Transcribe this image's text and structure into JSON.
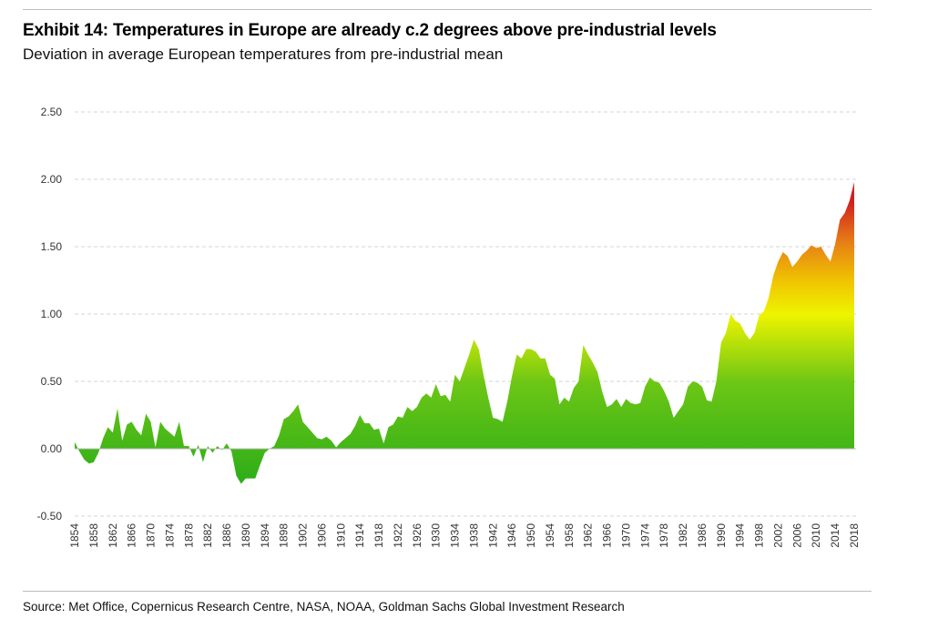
{
  "header": {
    "title": "Exhibit 14: Temperatures in Europe are already c.2 degrees above pre-industrial levels",
    "subtitle": "Deviation in average European temperatures from pre-industrial mean"
  },
  "footer": {
    "source": "Source: Met Office, Copernicus Research Centre, NASA, NOAA, Goldman Sachs Global Investment Research"
  },
  "chart_data": {
    "type": "area",
    "title": "",
    "xlabel": "",
    "ylabel": "",
    "ylim": [
      -0.5,
      2.5
    ],
    "y_ticks": [
      "2.50",
      "2.00",
      "1.50",
      "1.00",
      "0.50",
      "0.00",
      "-0.50"
    ],
    "y_tick_values": [
      2.5,
      2.0,
      1.5,
      1.0,
      0.5,
      0.0,
      -0.5
    ],
    "x_ticks": [
      "1854",
      "1858",
      "1862",
      "1866",
      "1870",
      "1874",
      "1878",
      "1882",
      "1886",
      "1890",
      "1894",
      "1898",
      "1902",
      "1906",
      "1910",
      "1914",
      "1918",
      "1922",
      "1926",
      "1930",
      "1934",
      "1938",
      "1942",
      "1946",
      "1950",
      "1954",
      "1958",
      "1962",
      "1966",
      "1970",
      "1974",
      "1978",
      "1982",
      "1986",
      "1990",
      "1994",
      "1998",
      "2002",
      "2006",
      "2010",
      "2014",
      "2018"
    ],
    "grid": "horizontal dashed",
    "color_gradient": [
      "#18a51a",
      "#6cc615",
      "#eef400",
      "#f0c600",
      "#e67e16",
      "#d21f1f"
    ],
    "series": [
      {
        "x": [
          1854,
          1855,
          1856,
          1857,
          1858,
          1859,
          1860,
          1861,
          1862,
          1863,
          1864,
          1865,
          1866,
          1867,
          1868,
          1869,
          1870,
          1871,
          1872,
          1873,
          1874,
          1875,
          1876,
          1877,
          1878,
          1879,
          1880,
          1881,
          1882,
          1883,
          1884,
          1885,
          1886,
          1887,
          1888,
          1889,
          1890,
          1891,
          1892,
          1893,
          1894,
          1895,
          1896,
          1897,
          1898,
          1899,
          1900,
          1901,
          1902,
          1903,
          1904,
          1905,
          1906,
          1907,
          1908,
          1909,
          1910,
          1911,
          1912,
          1913,
          1914,
          1915,
          1916,
          1917,
          1918,
          1919,
          1920,
          1921,
          1922,
          1923,
          1924,
          1925,
          1926,
          1927,
          1928,
          1929,
          1930,
          1931,
          1932,
          1933,
          1934,
          1935,
          1936,
          1937,
          1938,
          1939,
          1940,
          1941,
          1942,
          1943,
          1944,
          1945,
          1946,
          1947,
          1948,
          1949,
          1950,
          1951,
          1952,
          1953,
          1954,
          1955,
          1956,
          1957,
          1958,
          1959,
          1960,
          1961,
          1962,
          1963,
          1964,
          1965,
          1966,
          1967,
          1968,
          1969,
          1970,
          1971,
          1972,
          1973,
          1974,
          1975,
          1976,
          1977,
          1978,
          1979,
          1980,
          1981,
          1982,
          1983,
          1984,
          1985,
          1986,
          1987,
          1988,
          1989,
          1990,
          1991,
          1992,
          1993,
          1994,
          1995,
          1996,
          1997,
          1998,
          1999,
          2000,
          2001,
          2002,
          2003,
          2004,
          2005,
          2006,
          2007,
          2008,
          2009,
          2010,
          2011,
          2012,
          2013,
          2014,
          2015,
          2016,
          2017,
          2018
        ],
        "values": [
          0.05,
          -0.02,
          -0.08,
          -0.11,
          -0.1,
          -0.03,
          0.08,
          0.16,
          0.12,
          0.3,
          0.06,
          0.18,
          0.2,
          0.14,
          0.1,
          0.26,
          0.2,
          0.01,
          0.2,
          0.15,
          0.12,
          0.09,
          0.2,
          0.02,
          0.02,
          -0.06,
          0.03,
          -0.1,
          0.02,
          -0.03,
          0.02,
          -0.01,
          0.04,
          -0.02,
          -0.2,
          -0.26,
          -0.22,
          -0.22,
          -0.22,
          -0.12,
          -0.03,
          0.0,
          0.02,
          0.1,
          0.22,
          0.24,
          0.28,
          0.33,
          0.2,
          0.16,
          0.12,
          0.08,
          0.07,
          0.09,
          0.06,
          0.01,
          0.05,
          0.08,
          0.11,
          0.17,
          0.25,
          0.19,
          0.19,
          0.14,
          0.15,
          0.04,
          0.16,
          0.18,
          0.24,
          0.23,
          0.31,
          0.28,
          0.31,
          0.38,
          0.41,
          0.38,
          0.48,
          0.39,
          0.4,
          0.35,
          0.55,
          0.5,
          0.6,
          0.7,
          0.81,
          0.74,
          0.55,
          0.38,
          0.23,
          0.22,
          0.2,
          0.35,
          0.54,
          0.7,
          0.67,
          0.74,
          0.74,
          0.72,
          0.67,
          0.67,
          0.55,
          0.52,
          0.33,
          0.38,
          0.35,
          0.45,
          0.5,
          0.77,
          0.7,
          0.64,
          0.57,
          0.42,
          0.31,
          0.33,
          0.37,
          0.31,
          0.37,
          0.34,
          0.33,
          0.34,
          0.46,
          0.53,
          0.5,
          0.49,
          0.43,
          0.35,
          0.23,
          0.28,
          0.33,
          0.46,
          0.5,
          0.49,
          0.46,
          0.36,
          0.35,
          0.5,
          0.79,
          0.86,
          1.0,
          0.95,
          0.93,
          0.86,
          0.81,
          0.86,
          0.99,
          1.02,
          1.12,
          1.29,
          1.39,
          1.46,
          1.43,
          1.35,
          1.39,
          1.44,
          1.47,
          1.51,
          1.49,
          1.5,
          1.44,
          1.39,
          1.52,
          1.7,
          1.75,
          1.84,
          1.98
        ]
      }
    ]
  }
}
